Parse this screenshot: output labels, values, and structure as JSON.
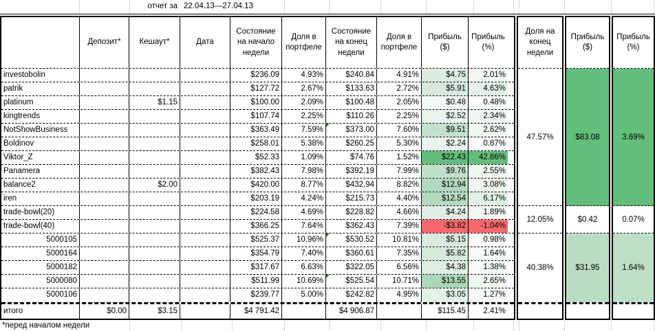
{
  "report": {
    "label": "отчет за",
    "period": "22.04.13—27.04.13"
  },
  "table": {
    "columns": {
      "name": "",
      "deposit": "Депозит*",
      "cashout": "Кешаут*",
      "date": "Дата",
      "start_balance": "Состояние на начало недели",
      "share_start": "Доля в портфеле",
      "end_balance": "Состояние на конец недели",
      "share_end": "Доля в портфеле",
      "profit_usd": "Прибыль ($)",
      "profit_pct": "Прибыль (%)",
      "share_week_end": "Доля на конец недели",
      "group_profit_usd": "Прибыль ($)",
      "group_profit_pct": "Прибыль (%)"
    },
    "rows": [
      {
        "name": "investobolin",
        "deposit": "",
        "cashout": "",
        "date": "",
        "start_balance": "$236.09",
        "share_start": "4.93%",
        "end_balance": "$240.84",
        "end_marker": false,
        "share_end": "4.91%",
        "profit_usd": "$4.75",
        "profit_usd_bg": "#DCEDE1",
        "profit_pct": "2.01%",
        "profit_pct_bg": "#F2F8F4",
        "align": "left"
      },
      {
        "name": "patrik",
        "deposit": "",
        "cashout": "",
        "date": "",
        "start_balance": "$127.72",
        "share_start": "2.67%",
        "end_balance": "$133.63",
        "end_marker": false,
        "share_end": "2.72%",
        "profit_usd": "$5.91",
        "profit_usd_bg": "#D6EADC",
        "profit_pct": "4.63%",
        "profit_pct_bg": "#E4F1E8",
        "align": "left"
      },
      {
        "name": "platinum",
        "deposit": "",
        "cashout": "$1.15",
        "date": "",
        "start_balance": "$100.00",
        "share_start": "2.09%",
        "end_balance": "$100.48",
        "end_marker": false,
        "share_end": "2.05%",
        "profit_usd": "$0.48",
        "profit_usd_bg": "#F3F9F4",
        "profit_pct": "0.48%",
        "profit_pct_bg": "#FBFDFB",
        "align": "left"
      },
      {
        "name": "kingtrends",
        "deposit": "",
        "cashout": "",
        "date": "",
        "start_balance": "$107.74",
        "share_start": "2.25%",
        "end_balance": "$110.26",
        "end_marker": false,
        "share_end": "2.25%",
        "profit_usd": "$2.52",
        "profit_usd_bg": "#E7F3EB",
        "profit_pct": "2.34%",
        "profit_pct_bg": "#F0F7F2",
        "align": "left"
      },
      {
        "name": "NotShowBusiness",
        "deposit": "",
        "cashout": "",
        "date": "",
        "start_balance": "$363.49",
        "share_start": "7.59%",
        "end_balance": "$373.00",
        "end_marker": true,
        "share_end": "7.60%",
        "profit_usd": "$9.51",
        "profit_usd_bg": "#C2E1CC",
        "profit_pct": "2.62%",
        "profit_pct_bg": "#EFF7F1",
        "align": "left"
      },
      {
        "name": "Boldinov",
        "deposit": "",
        "cashout": "",
        "date": "",
        "start_balance": "$258.01",
        "share_start": "5.38%",
        "end_balance": "$260.25",
        "end_marker": false,
        "share_end": "5.30%",
        "profit_usd": "$2.24",
        "profit_usd_bg": "#E9F4EC",
        "profit_pct": "0.87%",
        "profit_pct_bg": "#F9FCFA",
        "align": "left"
      },
      {
        "name": "Viktor_Z",
        "deposit": "",
        "cashout": "",
        "date": "",
        "start_balance": "$52.33",
        "share_start": "1.09%",
        "end_balance": "$74.76",
        "end_marker": false,
        "share_end": "1.52%",
        "profit_usd": "$22.43",
        "profit_usd_bg": "#63BE7B",
        "profit_pct": "42.86%",
        "profit_pct_bg": "#63BE7B",
        "align": "left"
      },
      {
        "name": "Panamera",
        "deposit": "",
        "cashout": "",
        "date": "",
        "start_balance": "$382.43",
        "share_start": "7.98%",
        "end_balance": "$392.19",
        "end_marker": false,
        "share_end": "7.99%",
        "profit_usd": "$9.76",
        "profit_usd_bg": "#C1E0CB",
        "profit_pct": "2.55%",
        "profit_pct_bg": "#EFF7F1",
        "align": "left"
      },
      {
        "name": "balance2",
        "deposit": "",
        "cashout": "$2.00",
        "date": "",
        "start_balance": "$420.00",
        "share_start": "8.77%",
        "end_balance": "$432.94",
        "end_marker": false,
        "share_end": "8.82%",
        "profit_usd": "$12.94",
        "profit_usd_bg": "#B1D9BE",
        "profit_pct": "3.08%",
        "profit_pct_bg": "#EDF6EF",
        "align": "left"
      },
      {
        "name": "iren",
        "deposit": "",
        "cashout": "",
        "date": "",
        "start_balance": "$203.19",
        "share_start": "4.24%",
        "end_balance": "$215.73",
        "end_marker": false,
        "share_end": "4.40%",
        "profit_usd": "$12.54",
        "profit_usd_bg": "#B3DABF",
        "profit_pct": "6.17%",
        "profit_pct_bg": "#E0F0E5",
        "align": "left"
      },
      {
        "name": "trade-bowl(20)",
        "deposit": "",
        "cashout": "",
        "date": "",
        "start_balance": "$224.58",
        "share_start": "4.69%",
        "end_balance": "$228.82",
        "end_marker": false,
        "share_end": "4.66%",
        "profit_usd": "$4.24",
        "profit_usd_bg": "#DFEFE4",
        "profit_pct": "1.89%",
        "profit_pct_bg": "#F3F9F4",
        "align": "left"
      },
      {
        "name": "trade-bowl(40)",
        "deposit": "",
        "cashout": "",
        "date": "",
        "start_balance": "$366.25",
        "share_start": "7.64%",
        "end_balance": "$362.43",
        "end_marker": false,
        "share_end": "7.39%",
        "profit_usd": "-$3.82",
        "profit_usd_bg": "#F8696B",
        "profit_pct": "-1.04%",
        "profit_pct_bg": "#F8696B",
        "align": "left"
      },
      {
        "name": "5000105",
        "deposit": "",
        "cashout": "",
        "date": "",
        "start_balance": "$525.37",
        "share_start": "10.96%",
        "end_balance": "$530.52",
        "end_marker": true,
        "share_end": "10.81%",
        "profit_usd": "$5.15",
        "profit_usd_bg": "#D9EBDE",
        "profit_pct": "0.98%",
        "profit_pct_bg": "#F8FBF9",
        "align": "right"
      },
      {
        "name": "5000164",
        "deposit": "",
        "cashout": "",
        "date": "",
        "start_balance": "$354.79",
        "share_start": "7.40%",
        "end_balance": "$360.61",
        "end_marker": false,
        "share_end": "7.35%",
        "profit_usd": "$5.82",
        "profit_usd_bg": "#D6EADC",
        "profit_pct": "1.64%",
        "profit_pct_bg": "#F5FAF6",
        "align": "right"
      },
      {
        "name": "5000182",
        "deposit": "",
        "cashout": "",
        "date": "",
        "start_balance": "$317.67",
        "share_start": "6.63%",
        "end_balance": "$322.05",
        "end_marker": false,
        "share_end": "6.56%",
        "profit_usd": "$4.38",
        "profit_usd_bg": "#DEEEE3",
        "profit_pct": "1.38%",
        "profit_pct_bg": "#F6FBF7",
        "align": "right"
      },
      {
        "name": "5000080",
        "deposit": "",
        "cashout": "",
        "date": "",
        "start_balance": "$511.99",
        "share_start": "10.69%",
        "end_balance": "$525.54",
        "end_marker": true,
        "share_end": "10.71%",
        "profit_usd": "$13.55",
        "profit_usd_bg": "#ACD7B9",
        "profit_pct": "2.65%",
        "profit_pct_bg": "#EFF7F1",
        "align": "right"
      },
      {
        "name": "5000106",
        "deposit": "",
        "cashout": "",
        "date": "",
        "start_balance": "$239.77",
        "share_start": "5.00%",
        "end_balance": "$242.82",
        "end_marker": false,
        "share_end": "4.95%",
        "profit_usd": "$3.05",
        "profit_usd_bg": "#E4F1E8",
        "profit_pct": "1.27%",
        "profit_pct_bg": "#F7FBF8",
        "align": "right"
      }
    ],
    "groups": [
      {
        "share": "47.57%",
        "share_bg": "#FFFFFF",
        "profit_usd": "$83.08",
        "profit_usd_bg": "#63BE7B",
        "profit_pct": "3.69%",
        "profit_pct_bg": "#63BE7B"
      },
      {
        "share": "12.05%",
        "share_bg": "#FFFFFF",
        "profit_usd": "$0.42",
        "profit_usd_bg": "#FFFFFF",
        "profit_pct": "0.07%",
        "profit_pct_bg": "#FFFFFF"
      },
      {
        "share": "40.38%",
        "share_bg": "#FFFFFF",
        "profit_usd": "$31.95",
        "profit_usd_bg": "#B9DDC3",
        "profit_pct": "1.64%",
        "profit_pct_bg": "#BCDFC6"
      }
    ],
    "totals": {
      "label": "итого",
      "deposit": "$0.00",
      "cashout": "$3.15",
      "date": "",
      "start_balance": "$4 791.42",
      "share_start": "",
      "end_balance": "$4 906.87",
      "share_end": "",
      "profit_usd": "$115.45",
      "profit_pct": "2.41%"
    }
  },
  "footnote": "*перед началом недели",
  "colors": {
    "scale_max_green": "#63BE7B",
    "scale_min_red": "#F8696B",
    "group_light_green": "#B9DDC3",
    "comment_marker_green": "#1E7B34",
    "faint_gridline": "#D8D8D8"
  }
}
